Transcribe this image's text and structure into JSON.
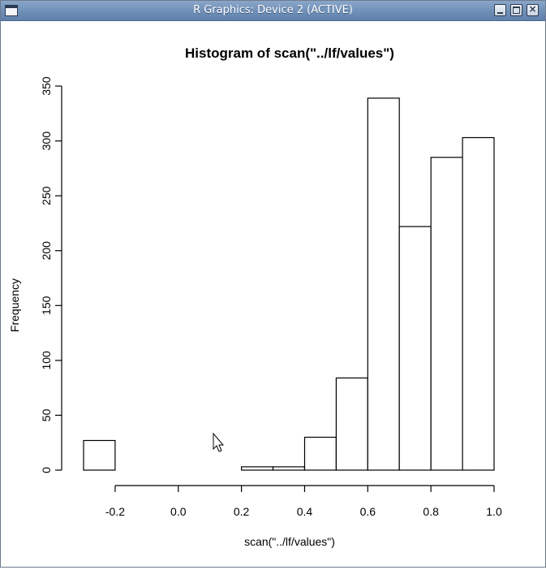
{
  "window": {
    "title": "R Graphics: Device 2 (ACTIVE)",
    "buttons": [
      "minimize",
      "maximize",
      "close"
    ],
    "close_glyph": "×"
  },
  "chart_data": {
    "type": "bar",
    "title": "Histogram of scan(\"../lf/values\")",
    "xlabel": "scan(\"../lf/values\")",
    "ylabel": "Frequency",
    "bins": [
      {
        "from": -0.3,
        "to": -0.2,
        "count": 27
      },
      {
        "from": -0.2,
        "to": -0.1,
        "count": 0
      },
      {
        "from": -0.1,
        "to": 0.0,
        "count": 0
      },
      {
        "from": 0.0,
        "to": 0.1,
        "count": 0
      },
      {
        "from": 0.1,
        "to": 0.2,
        "count": 0
      },
      {
        "from": 0.2,
        "to": 0.3,
        "count": 3
      },
      {
        "from": 0.3,
        "to": 0.4,
        "count": 3
      },
      {
        "from": 0.4,
        "to": 0.5,
        "count": 30
      },
      {
        "from": 0.5,
        "to": 0.6,
        "count": 84
      },
      {
        "from": 0.6,
        "to": 0.7,
        "count": 339
      },
      {
        "from": 0.7,
        "to": 0.8,
        "count": 222
      },
      {
        "from": 0.8,
        "to": 0.9,
        "count": 285
      },
      {
        "from": 0.9,
        "to": 1.0,
        "count": 303
      }
    ],
    "xlim": [
      -0.3,
      1.0
    ],
    "ylim": [
      0,
      350
    ],
    "xticks": [
      -0.2,
      0.0,
      0.2,
      0.4,
      0.6,
      0.8,
      1.0
    ],
    "xtick_labels": [
      "-0.2",
      "0.0",
      "0.2",
      "0.4",
      "0.6",
      "0.8",
      "1.0"
    ],
    "yticks": [
      0,
      50,
      100,
      150,
      200,
      250,
      300,
      350
    ],
    "ytick_labels": [
      "0",
      "50",
      "100",
      "150",
      "200",
      "250",
      "300",
      "350"
    ],
    "grid": false,
    "legend": "none"
  }
}
